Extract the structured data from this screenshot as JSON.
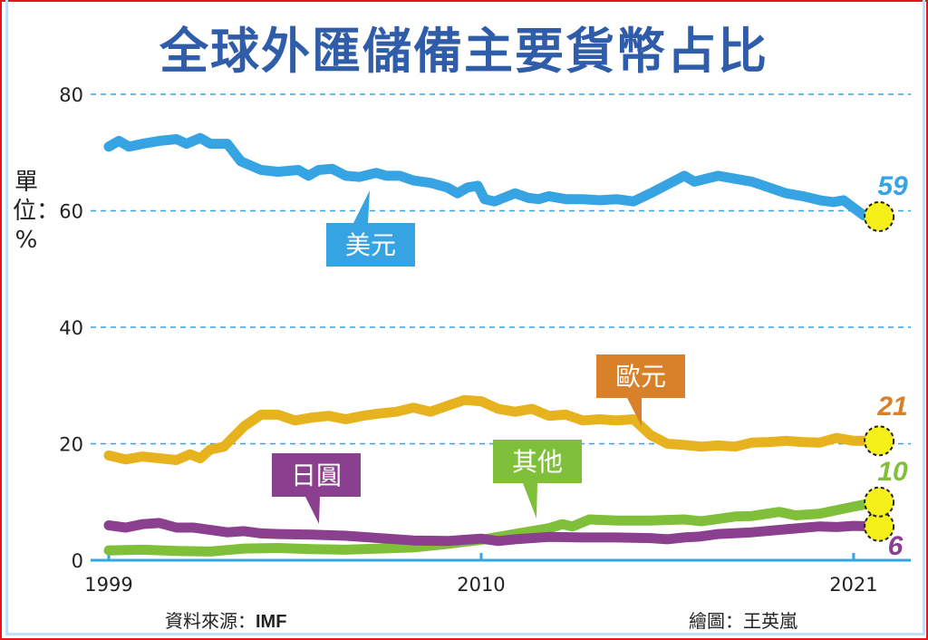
{
  "chart_data": {
    "type": "line",
    "title": "全球外匯儲備主要貨幣占比",
    "ylabel": "單位：%",
    "xlabel": "",
    "ylim": [
      0,
      80
    ],
    "xlim": [
      1999,
      2021.7
    ],
    "yticks": [
      "0",
      "20",
      "40",
      "60",
      "80"
    ],
    "xticks": [
      "1999",
      "2010",
      "2021"
    ],
    "grid": "horizontal dashed",
    "series": [
      {
        "name": "美元",
        "color": "#36a4e3",
        "label_color": "#36a4e3",
        "end_label": "59",
        "x": [
          1999,
          1999.3,
          1999.6,
          2000,
          2000.5,
          2001,
          2001.3,
          2001.7,
          2002,
          2002.5,
          2002.9,
          2003.5,
          2004,
          2004.6,
          2004.9,
          2005.2,
          2005.6,
          2006,
          2006.4,
          2006.9,
          2007.2,
          2007.6,
          2008,
          2008.5,
          2009,
          2009.3,
          2009.6,
          2009.9,
          2010.1,
          2010.4,
          2011,
          2011.4,
          2011.7,
          2012,
          2012.5,
          2013,
          2013.5,
          2014,
          2014.5,
          2015,
          2015.5,
          2016,
          2016.3,
          2017,
          2017.5,
          2018,
          2018.5,
          2019,
          2019.5,
          2020,
          2020.4,
          2020.7,
          2021,
          2021.3,
          2021.7
        ],
        "y": [
          71,
          72,
          71,
          71.5,
          72,
          72.3,
          71.5,
          72.5,
          71.5,
          71.5,
          68.5,
          67,
          66.7,
          67,
          66,
          67,
          67.2,
          66,
          65.8,
          66.5,
          66,
          66,
          65.2,
          64.8,
          64,
          63,
          64,
          64.3,
          62,
          61.6,
          63,
          62.2,
          62,
          62.5,
          62,
          62,
          61.8,
          62,
          61.6,
          63,
          64.5,
          66,
          65,
          66,
          65.5,
          65,
          64,
          63,
          62.5,
          61.8,
          61.5,
          61.8,
          60.5,
          59.2,
          59
        ]
      },
      {
        "name": "歐元",
        "color": "#e6b21e",
        "label_color": "#d9802a",
        "end_label": "21",
        "x": [
          1999,
          1999.5,
          2000,
          2001,
          2001.4,
          2001.7,
          2002,
          2002.4,
          2003,
          2003.5,
          2004,
          2004.5,
          2005,
          2005.5,
          2006,
          2006.5,
          2007,
          2007.5,
          2008,
          2008.5,
          2009,
          2009.5,
          2010,
          2010.5,
          2011,
          2011.5,
          2012,
          2012.5,
          2013,
          2013.5,
          2014,
          2014.5,
          2015,
          2015.5,
          2016,
          2016.5,
          2017,
          2017.5,
          2018,
          2018.5,
          2019,
          2019.5,
          2020,
          2020.5,
          2021,
          2021.7
        ],
        "y": [
          18,
          17.3,
          17.8,
          17.2,
          18.2,
          17.5,
          19,
          19.5,
          23,
          25,
          25,
          24,
          24.5,
          24.8,
          24.2,
          24.8,
          25.2,
          25.5,
          26.2,
          25.5,
          26.5,
          27.5,
          27.3,
          26,
          25.5,
          26,
          24.8,
          25,
          24,
          24.2,
          24,
          24.2,
          21.5,
          20,
          19.8,
          19.5,
          19.7,
          19.5,
          20.2,
          20.3,
          20.5,
          20.3,
          20.2,
          21,
          20.5,
          20.5
        ]
      },
      {
        "name": "日圓",
        "color": "#8a3f8f",
        "label_color": "#8a3f8f",
        "end_label": "6",
        "x": [
          1999,
          1999.5,
          2000,
          2000.5,
          2001,
          2001.5,
          2002,
          2002.5,
          2003,
          2003.5,
          2004,
          2005,
          2006,
          2007,
          2008,
          2009,
          2010,
          2010.5,
          2011,
          2012,
          2013,
          2014,
          2015,
          2015.5,
          2016,
          2016.5,
          2017,
          2018,
          2019,
          2020,
          2020.5,
          2021,
          2021.7
        ],
        "y": [
          6,
          5.6,
          6.2,
          6.4,
          5.6,
          5.6,
          5.2,
          4.8,
          5,
          4.6,
          4.5,
          4.4,
          4.2,
          3.8,
          3.4,
          3.3,
          3.7,
          3.3,
          3.6,
          4,
          3.9,
          3.9,
          3.8,
          3.6,
          3.9,
          4.1,
          4.5,
          4.8,
          5.3,
          5.8,
          5.7,
          5.9,
          5.8
        ]
      },
      {
        "name": "其他",
        "color": "#7fbf3a",
        "label_color": "#7fbf3a",
        "end_label": "10",
        "x": [
          1999,
          2000,
          2001,
          2002,
          2003,
          2004,
          2005,
          2006,
          2007,
          2008,
          2009,
          2010,
          2011,
          2012,
          2012.4,
          2012.7,
          2013.2,
          2014,
          2015,
          2016,
          2016.5,
          2017,
          2017.5,
          2018,
          2018.8,
          2019.3,
          2020,
          2020.5,
          2021,
          2021.7
        ],
        "y": [
          1.7,
          1.8,
          1.6,
          1.5,
          2,
          2.1,
          1.9,
          1.8,
          2,
          2.2,
          2.8,
          3.5,
          4.5,
          5.5,
          6.2,
          5.8,
          7,
          6.8,
          6.8,
          7,
          6.7,
          7.1,
          7.5,
          7.6,
          8.3,
          7.7,
          8,
          8.6,
          9.2,
          10
        ]
      }
    ]
  },
  "source": {
    "label": "資料來源：",
    "value": "IMF"
  },
  "author": "繪圖：王英嵐"
}
